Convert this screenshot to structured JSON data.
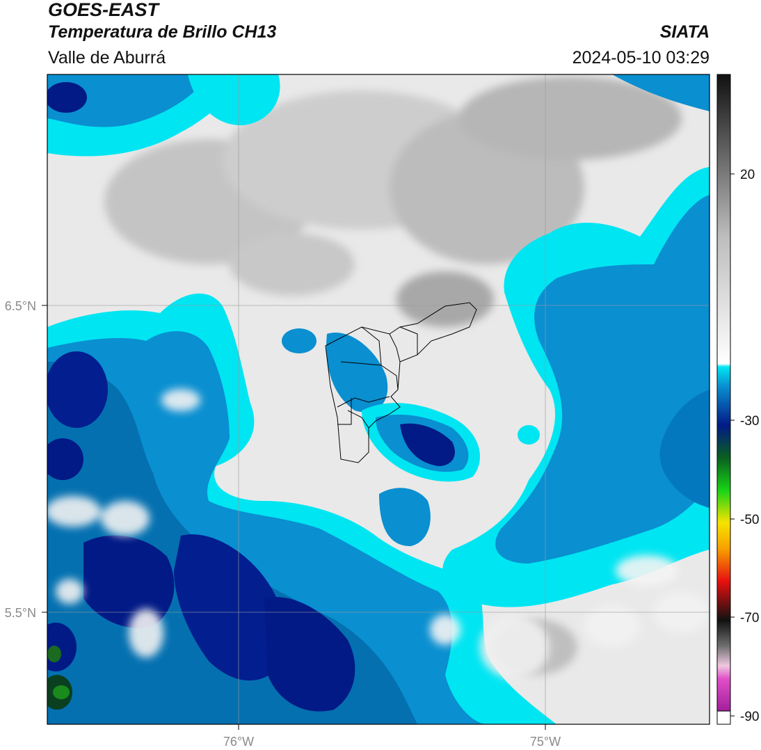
{
  "header": {
    "satellite": "GOES-EAST",
    "product": "Temperatura de Brillo CH13",
    "region": "Valle de Aburrá",
    "agency": "SIATA",
    "datetime": "2024-05-10 03:29"
  },
  "map": {
    "lat_labels": [
      "6.5°N",
      "5.5°N"
    ],
    "lon_labels": [
      "76°W",
      "75°W"
    ]
  },
  "colorbar": {
    "tick_labels": [
      "20",
      "-30",
      "-50",
      "-70",
      "-90"
    ],
    "palette": {
      "warm_dark": "#2a2a2a",
      "warm_light": "#f2f2f2",
      "cyan": "#00e5f2",
      "mid_blue": "#0a8fd0",
      "navy": "#021a86",
      "green": "#17d317",
      "yellow": "#f7e300",
      "red": "#e81010",
      "magenta": "#e050c8",
      "purple": "#8a0a8a"
    }
  }
}
